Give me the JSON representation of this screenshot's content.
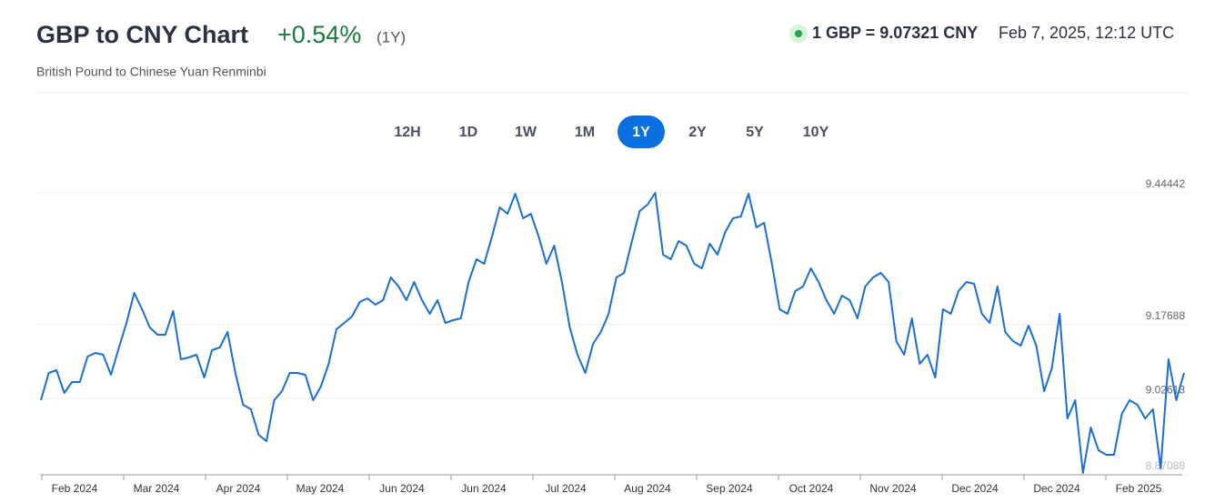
{
  "chart_data": {
    "type": "line",
    "title": "GBP to CNY Chart",
    "change": "+0.54%",
    "change_period": "(1Y)",
    "subtitle": "British Pound to Chinese Yuan Renminbi",
    "rate": "1 GBP = 9.07321 CNY",
    "timestamp": "Feb 7, 2025, 12:12 UTC",
    "ranges": [
      "12H",
      "1D",
      "1W",
      "1M",
      "1Y",
      "2Y",
      "5Y",
      "10Y"
    ],
    "active_range": "1Y",
    "color": "#1a6fd4",
    "ylim": [
      8.87088,
      9.44442
    ],
    "yticks": [
      9.44442,
      9.17688,
      9.02613,
      8.87088
    ],
    "grid": true,
    "xticks": [
      "Feb 2024",
      "Mar 2024",
      "Apr 2024",
      "May 2024",
      "Jun 2024",
      "Jun 2024",
      "Jul 2024",
      "Aug 2024",
      "Sep 2024",
      "Oct 2024",
      "Nov 2024",
      "Dec 2024",
      "Dec 2024",
      "Feb 2025"
    ],
    "values": [
      9.0226,
      9.0781,
      9.0836,
      9.0374,
      9.0596,
      9.0596,
      9.1114,
      9.1188,
      9.1151,
      9.0744,
      9.128,
      9.1798,
      9.2409,
      9.2076,
      9.1706,
      9.1558,
      9.1558,
      9.2039,
      9.1058,
      9.1095,
      9.1151,
      9.0688,
      9.1243,
      9.1299,
      9.1613,
      9.0781,
      9.0133,
      9.0041,
      8.9523,
      8.9393,
      9.0226,
      9.0411,
      9.0781,
      9.0781,
      9.0744,
      9.0226,
      9.0503,
      9.0966,
      9.1669,
      9.1798,
      9.1928,
      9.2224,
      9.2298,
      9.2168,
      9.2261,
      9.2723,
      9.2538,
      9.2261,
      9.2631,
      9.2261,
      9.1983,
      9.2261,
      9.1798,
      9.1854,
      9.1891,
      9.2631,
      9.3093,
      9.3001,
      9.3556,
      9.4148,
      9.4018,
      9.4426,
      9.3926,
      9.4018,
      9.3556,
      9.3001,
      9.3371,
      9.2631,
      9.1706,
      9.1151,
      9.0781,
      9.1373,
      9.1613,
      9.1983,
      9.2723,
      9.2816,
      9.3463,
      9.4074,
      9.4203,
      9.44442,
      9.3186,
      9.3093,
      9.3463,
      9.3371,
      9.3001,
      9.2908,
      9.3408,
      9.3186,
      9.3648,
      9.3926,
      9.3963,
      9.4426,
      9.3741,
      9.3833,
      9.3001,
      9.2076,
      9.1983,
      9.2446,
      9.2538,
      9.2908,
      9.2631,
      9.2261,
      9.1983,
      9.2353,
      9.2261,
      9.1891,
      9.2538,
      9.2723,
      9.2816,
      9.2631,
      9.1428,
      9.1151,
      9.1891,
      9.0966,
      9.1151,
      9.0688,
      9.2076,
      9.1983,
      9.2446,
      9.2631,
      9.2594,
      9.1983,
      9.1798,
      9.2538,
      9.1613,
      9.1428,
      9.1336,
      9.1743,
      9.1336,
      9.0411,
      9.0873,
      9.1983,
      8.9856,
      9.0226,
      8.8746,
      8.9671,
      8.9208,
      8.9116,
      8.9116,
      8.9948,
      9.0226,
      9.0133,
      8.9856,
      9.0041,
      8.8838,
      9.1058,
      9.0226,
      9.0781
    ]
  }
}
